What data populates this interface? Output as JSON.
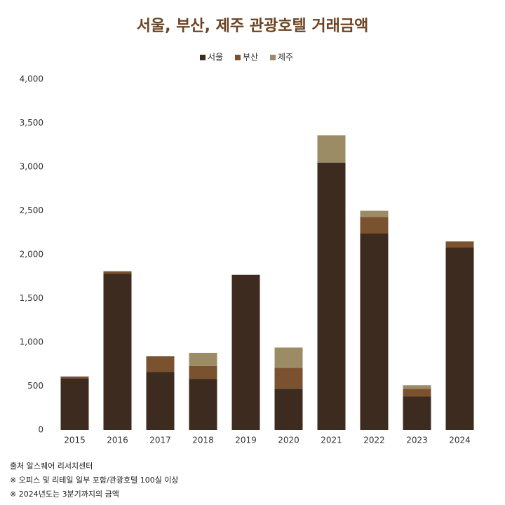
{
  "chart_data": {
    "type": "stacked_bar",
    "title": "서울, 부산, 제주 관광호텔 거래금액",
    "categories": [
      "2015",
      "2016",
      "2017",
      "2018",
      "2019",
      "2020",
      "2021",
      "2022",
      "2023",
      "2024"
    ],
    "series": [
      {
        "name": "서울",
        "color": "#3d2b20",
        "values": [
          590,
          1780,
          660,
          580,
          1770,
          470,
          3050,
          2240,
          380,
          2080
        ]
      },
      {
        "name": "부산",
        "color": "#7a5230",
        "values": [
          20,
          30,
          180,
          150,
          0,
          240,
          0,
          190,
          90,
          70
        ]
      },
      {
        "name": "제주",
        "color": "#9c8c66",
        "values": [
          0,
          0,
          0,
          150,
          0,
          230,
          310,
          70,
          40,
          0
        ]
      }
    ],
    "ylim": [
      0,
      4000
    ],
    "yticks": [
      0,
      500,
      {
        "value": 1000,
        "label": "1,000"
      },
      {
        "value": 1500,
        "label": "1,500"
      },
      {
        "value": 2000,
        "label": "2,000"
      },
      {
        "value": 2500,
        "label": "2,500"
      },
      {
        "value": 3000,
        "label": "3,000"
      },
      {
        "value": 3500,
        "label": "3,500"
      },
      {
        "value": 4000,
        "label": "4,000"
      }
    ],
    "legend": "top",
    "notes": [
      "출처  알스퀘어 리서치센터",
      "※ 오피스 및 리테일 일부 포함/관광호텔 100실 이상",
      "※ 2024년도는 3분기까지의 금액"
    ]
  }
}
